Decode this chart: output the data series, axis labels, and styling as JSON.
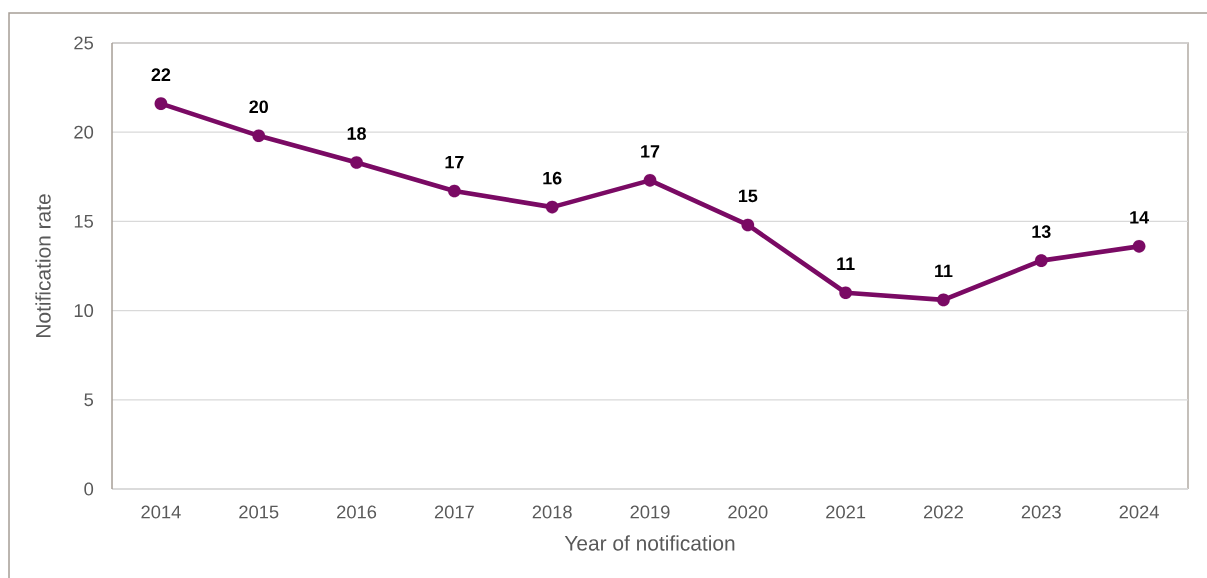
{
  "chart_data": {
    "type": "line",
    "xlabel": "Year of notification",
    "ylabel": "Notification rate",
    "categories": [
      "2014",
      "2015",
      "2016",
      "2017",
      "2018",
      "2019",
      "2020",
      "2021",
      "2022",
      "2023",
      "2024"
    ],
    "values": [
      21.6,
      19.8,
      18.3,
      16.7,
      15.8,
      17.3,
      14.8,
      11.0,
      10.6,
      12.8,
      13.6
    ],
    "value_labels": [
      "22",
      "20",
      "18",
      "17",
      "16",
      "17",
      "15",
      "11",
      "11",
      "13",
      "14"
    ],
    "color": "#7a0a64",
    "marker": "circle",
    "line_style": "solid",
    "grid": "y",
    "ylim": [
      0,
      25
    ],
    "yticks": [
      0,
      5,
      10,
      15,
      20,
      25
    ]
  }
}
